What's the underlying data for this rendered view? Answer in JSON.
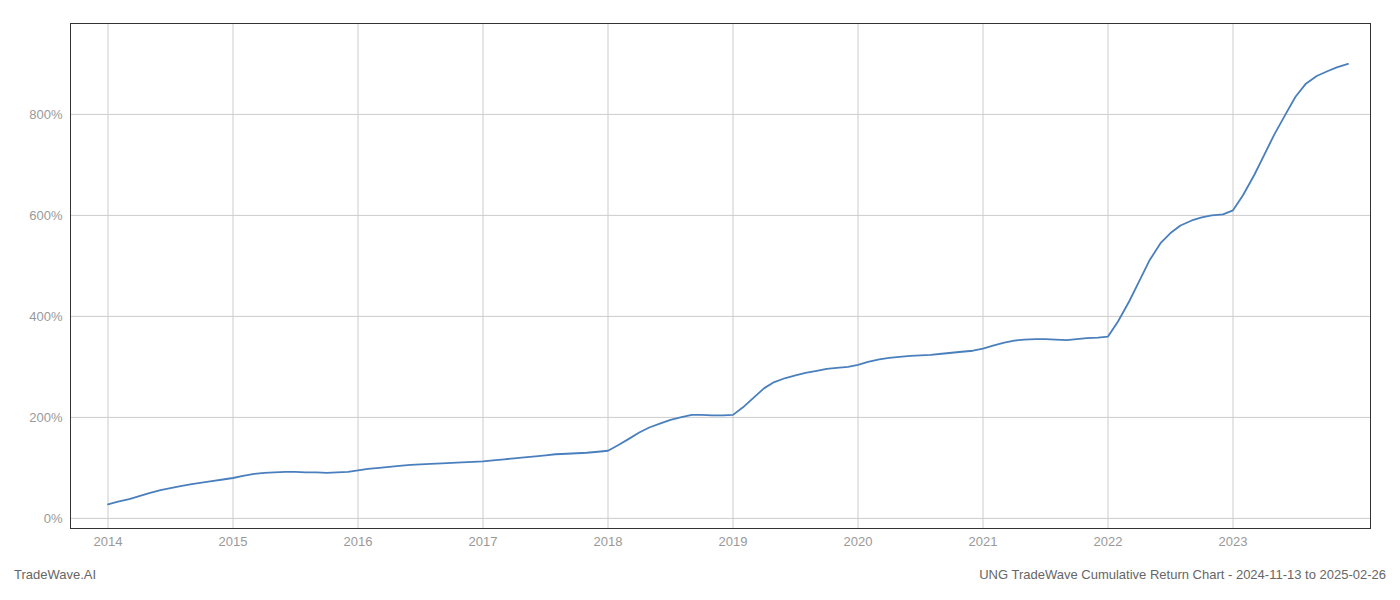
{
  "chart_data": {
    "type": "line",
    "x": [
      2014.0,
      2014.08,
      2014.17,
      2014.25,
      2014.33,
      2014.42,
      2014.5,
      2014.58,
      2014.67,
      2014.75,
      2014.83,
      2014.92,
      2015.0,
      2015.08,
      2015.17,
      2015.25,
      2015.33,
      2015.42,
      2015.5,
      2015.58,
      2015.67,
      2015.75,
      2015.83,
      2015.92,
      2016.0,
      2016.08,
      2016.17,
      2016.25,
      2016.33,
      2016.42,
      2016.5,
      2016.58,
      2016.67,
      2016.75,
      2016.83,
      2016.92,
      2017.0,
      2017.08,
      2017.17,
      2017.25,
      2017.33,
      2017.42,
      2017.5,
      2017.58,
      2017.67,
      2017.75,
      2017.83,
      2017.92,
      2018.0,
      2018.08,
      2018.17,
      2018.25,
      2018.33,
      2018.42,
      2018.5,
      2018.58,
      2018.67,
      2018.75,
      2018.83,
      2018.92,
      2019.0,
      2019.08,
      2019.17,
      2019.25,
      2019.33,
      2019.42,
      2019.5,
      2019.58,
      2019.67,
      2019.75,
      2019.83,
      2019.92,
      2020.0,
      2020.08,
      2020.17,
      2020.25,
      2020.33,
      2020.42,
      2020.5,
      2020.58,
      2020.67,
      2020.75,
      2020.83,
      2020.92,
      2021.0,
      2021.08,
      2021.17,
      2021.25,
      2021.33,
      2021.42,
      2021.5,
      2021.58,
      2021.67,
      2021.75,
      2021.83,
      2021.92,
      2022.0,
      2022.08,
      2022.17,
      2022.25,
      2022.33,
      2022.42,
      2022.5,
      2022.58,
      2022.67,
      2022.75,
      2022.83,
      2022.92,
      2023.0,
      2023.08,
      2023.17,
      2023.25,
      2023.33,
      2023.42,
      2023.5,
      2023.58,
      2023.67,
      2023.75,
      2023.83,
      2023.92
    ],
    "values": [
      28,
      33,
      38,
      44,
      50,
      56,
      60,
      64,
      68,
      71,
      74,
      77,
      80,
      84,
      88,
      90,
      91,
      92,
      92,
      91,
      91,
      90,
      91,
      92,
      95,
      98,
      100,
      102,
      104,
      106,
      107,
      108,
      109,
      110,
      111,
      112,
      113,
      115,
      117,
      119,
      121,
      123,
      125,
      127,
      128,
      129,
      130,
      132,
      134,
      145,
      158,
      170,
      180,
      188,
      195,
      200,
      205,
      205,
      204,
      204,
      205,
      220,
      240,
      258,
      270,
      278,
      283,
      288,
      292,
      296,
      298,
      300,
      304,
      310,
      315,
      318,
      320,
      322,
      323,
      324,
      326,
      328,
      330,
      332,
      336,
      342,
      348,
      352,
      354,
      355,
      355,
      354,
      353,
      355,
      357,
      358,
      360,
      390,
      430,
      470,
      510,
      545,
      565,
      580,
      590,
      596,
      600,
      602,
      610,
      640,
      680,
      720,
      760,
      800,
      835,
      860,
      876,
      885,
      893,
      900
    ],
    "color": "#4a7fbd",
    "xlim": [
      2013.7,
      2024.1
    ],
    "xticks": [
      2014,
      2015,
      2016,
      2017,
      2018,
      2019,
      2020,
      2021,
      2022,
      2023
    ],
    "ylim": [
      -20,
      980
    ],
    "yticks": [
      {
        "value": 0,
        "label": "0%"
      },
      {
        "value": 200,
        "label": "200%"
      },
      {
        "value": 400,
        "label": "400%"
      },
      {
        "value": 600,
        "label": "600%"
      },
      {
        "value": 800,
        "label": "800%"
      }
    ],
    "grid": true,
    "annotations": [
      "TradeWave.AI",
      "UNG TradeWave Cumulative Return Chart - 2024-11-13 to 2025-02-26"
    ]
  }
}
